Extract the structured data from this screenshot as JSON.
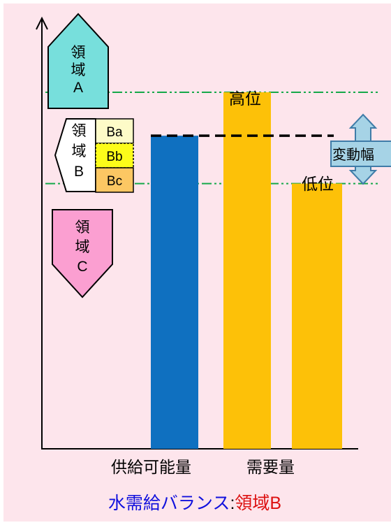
{
  "zones": {
    "a": {
      "lines": [
        "領",
        "域",
        "A"
      ],
      "color": "#77dfdc"
    },
    "b": {
      "lines": [
        "領",
        "域",
        "B"
      ],
      "color": "#ffffff"
    },
    "c": {
      "lines": [
        "領",
        "域",
        "C"
      ],
      "color": "#fb9fd1"
    },
    "b_sub": [
      {
        "label": "Ba",
        "color": "#fdfbc8"
      },
      {
        "label": "Bb",
        "color": "#fcfc1a"
      },
      {
        "label": "Bc",
        "color": "#fcc763"
      }
    ]
  },
  "labels": {
    "high": "高位",
    "low": "低位",
    "range": "変動幅",
    "supply": "供給可能量",
    "demand": "需要量"
  },
  "caption": {
    "main": "水需給バランス",
    "sep": ":",
    "result": "領域B",
    "main_color": "#1111dd",
    "result_color": "#dd1111"
  },
  "chart_data": {
    "type": "bar",
    "categories": [
      "供給可能量",
      "需要量",
      "需要量"
    ],
    "series": [
      {
        "name": "供給可能量",
        "values": [
          72,
          null,
          null
        ],
        "color": "#0f70c0"
      },
      {
        "name": "需要量",
        "values": [
          null,
          82,
          61
        ],
        "color": "#fdc108"
      }
    ],
    "bar_labels": [
      "",
      "高位",
      "低位"
    ],
    "ylim": [
      0,
      100
    ],
    "supply_level": 72,
    "range_band": [
      61,
      82
    ],
    "colors": {
      "supply": "#0f70c0",
      "demand": "#fdc108",
      "guide": "#15a94a"
    }
  }
}
